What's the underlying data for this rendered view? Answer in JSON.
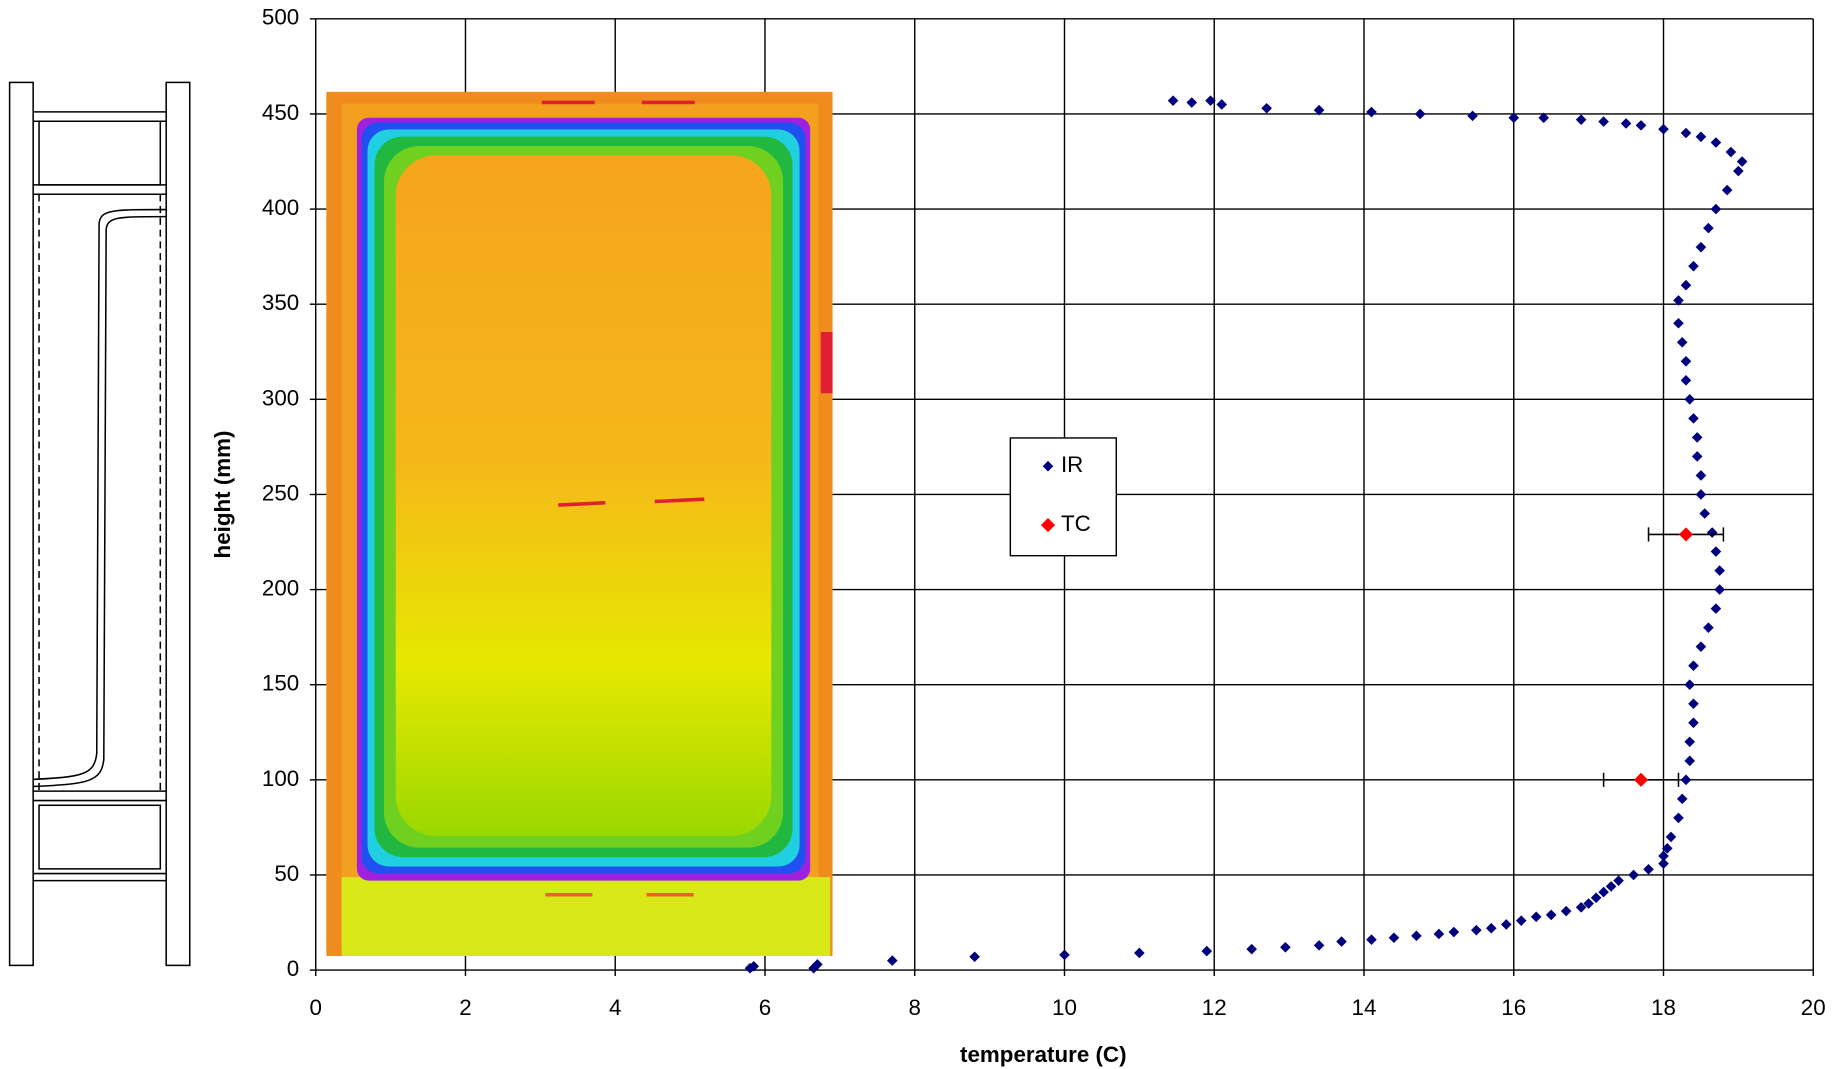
{
  "chart_data": {
    "type": "scatter",
    "xlabel": "temperature (C)",
    "ylabel": "height (mm)",
    "xlim": [
      0,
      20
    ],
    "xticks": [
      0,
      2,
      4,
      6,
      8,
      10,
      12,
      14,
      16,
      18,
      20
    ],
    "ylim": [
      0,
      500
    ],
    "yticks": [
      0,
      50,
      100,
      150,
      200,
      250,
      300,
      350,
      400,
      450,
      500
    ],
    "grid": true,
    "series": [
      {
        "name": "IR",
        "color": "#00007f",
        "x": [
          5.8,
          5.85,
          6.65,
          6.7,
          7.7,
          8.8,
          10,
          11,
          11.9,
          12.5,
          12.95,
          13.4,
          13.7,
          14.1,
          14.4,
          14.7,
          15,
          15.2,
          15.5,
          15.7,
          15.9,
          16.1,
          16.3,
          16.5,
          16.7,
          16.9,
          17.0,
          17.1,
          17.2,
          17.3,
          17.4,
          17.6,
          17.8,
          18.0,
          18.0,
          18.05,
          18.1,
          18.2,
          18.25,
          18.3,
          18.35,
          18.35,
          18.4,
          18.4,
          18.35,
          18.4,
          18.5,
          18.6,
          18.7,
          18.75,
          18.75,
          18.7,
          18.65,
          18.55,
          18.5,
          18.5,
          18.45,
          18.45,
          18.4,
          18.35,
          18.3,
          18.3,
          18.25,
          18.2,
          18.2,
          18.3,
          18.4,
          18.5,
          18.6,
          18.7,
          18.85,
          19.0,
          19.05,
          18.9,
          18.7,
          18.5,
          18.3,
          18.0,
          17.7,
          17.5,
          17.2,
          16.9,
          16.4,
          16.0,
          15.45,
          14.75,
          14.1,
          13.4,
          12.7,
          12.1,
          11.95,
          11.7,
          11.45
        ],
        "values": [
          1,
          2,
          1,
          3,
          5,
          7,
          8,
          9,
          10,
          11,
          12,
          13,
          15,
          16,
          17,
          18,
          19,
          20,
          21,
          22,
          24,
          26,
          28,
          29,
          31,
          33,
          35,
          38,
          41,
          44,
          47,
          50,
          53,
          56,
          60,
          64,
          70,
          80,
          90,
          100,
          110,
          120,
          130,
          140,
          150,
          160,
          170,
          180,
          190,
          200,
          210,
          220,
          230,
          240,
          250,
          260,
          270,
          280,
          290,
          300,
          310,
          320,
          330,
          340,
          352,
          360,
          370,
          380,
          390,
          400,
          410,
          420,
          425,
          430,
          435,
          438,
          440,
          442,
          444,
          445,
          446,
          447,
          448,
          448,
          449,
          450,
          451,
          452,
          453,
          455,
          457,
          456,
          457
        ]
      },
      {
        "name": "TC",
        "color": "#ff0000",
        "x": [
          18.3,
          17.7
        ],
        "values": [
          229,
          100
        ],
        "xerr": [
          0.5,
          0.5
        ]
      }
    ],
    "legend": "center"
  }
}
